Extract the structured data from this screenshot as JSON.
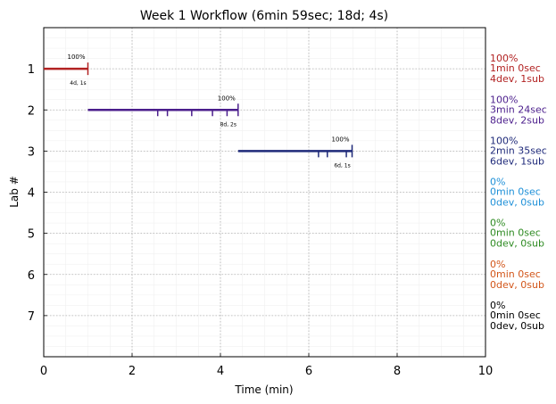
{
  "chart_data": {
    "type": "gantt",
    "title": "Week 1 Workflow (6min 59sec; 18d; 4s)",
    "xlabel": "Time (min)",
    "ylabel": "Lab #",
    "xlim": [
      0,
      10
    ],
    "ylim": [
      8,
      0
    ],
    "x_ticks": [
      0,
      2,
      4,
      6,
      8,
      10
    ],
    "y_ticks": [
      1,
      2,
      3,
      4,
      5,
      6,
      7
    ],
    "grid": true,
    "labs": [
      {
        "lab": 1,
        "start": 0.0,
        "end": 1.0,
        "marks": [],
        "pct_label": "100%",
        "dev_label": "4d, 1s",
        "side_pct": "100%",
        "side_time": "1min 0sec",
        "side_counts": "4dev, 1sub",
        "color": "#b22222"
      },
      {
        "lab": 2,
        "start": 1.0,
        "end": 4.4,
        "marks": [
          2.58,
          2.8,
          3.35,
          3.82,
          4.15
        ],
        "pct_label": "100%",
        "dev_label": "8d, 2s",
        "side_pct": "100%",
        "side_time": "3min 24sec",
        "side_counts": "8dev, 2sub",
        "color": "#4b1e8c"
      },
      {
        "lab": 3,
        "start": 4.4,
        "end": 6.98,
        "marks": [
          6.22,
          6.42,
          6.85
        ],
        "pct_label": "100%",
        "dev_label": "6d, 1s",
        "side_pct": "100%",
        "side_time": "2min 35sec",
        "side_counts": "6dev, 1sub",
        "color": "#1f2a7a"
      },
      {
        "lab": 4,
        "side_pct": "0%",
        "side_time": "0min 0sec",
        "side_counts": "0dev, 0sub",
        "color": "#1e90d8"
      },
      {
        "lab": 5,
        "side_pct": "0%",
        "side_time": "0min 0sec",
        "side_counts": "0dev, 0sub",
        "color": "#2e8b22"
      },
      {
        "lab": 6,
        "side_pct": "0%",
        "side_time": "0min 0sec",
        "side_counts": "0dev, 0sub",
        "color": "#d2561a"
      },
      {
        "lab": 7,
        "side_pct": "0%",
        "side_time": "0min 0sec",
        "side_counts": "0dev, 0sub",
        "color": "#000000"
      }
    ]
  }
}
